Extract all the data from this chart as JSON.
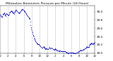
{
  "title": "Milwaukee Barometric Pressure per Minute (24 Hours)",
  "dot_color": "#0000cc",
  "bg_color": "#ffffff",
  "grid_color": "#aaaaaa",
  "ylim": [
    29.0,
    30.15
  ],
  "xlim": [
    0,
    1440
  ],
  "ytick_vals": [
    29.0,
    29.2,
    29.4,
    29.6,
    29.8,
    30.0
  ],
  "ytick_labels": [
    "29.0",
    "29.2",
    "29.4",
    "29.6",
    "29.8",
    "30.0"
  ],
  "xtick_positions": [
    0,
    120,
    240,
    360,
    480,
    600,
    720,
    840,
    960,
    1080,
    1200,
    1320,
    1440
  ],
  "xtick_labels": [
    "12",
    "2",
    "4",
    "6",
    "8",
    "10",
    "12",
    "2",
    "4",
    "6",
    "8",
    "10",
    "12"
  ],
  "vgrid_positions": [
    120,
    240,
    360,
    480,
    600,
    720,
    840,
    960,
    1080,
    1200,
    1320
  ],
  "pressure_data": [
    [
      0,
      29.92
    ],
    [
      5,
      29.93
    ],
    [
      10,
      29.91
    ],
    [
      15,
      29.9
    ],
    [
      20,
      29.88
    ],
    [
      25,
      29.87
    ],
    [
      30,
      29.88
    ],
    [
      35,
      29.9
    ],
    [
      40,
      29.92
    ],
    [
      45,
      29.94
    ],
    [
      50,
      29.95
    ],
    [
      55,
      29.96
    ],
    [
      60,
      29.97
    ],
    [
      65,
      29.96
    ],
    [
      70,
      29.95
    ],
    [
      75,
      29.93
    ],
    [
      80,
      29.91
    ],
    [
      85,
      29.9
    ],
    [
      90,
      29.92
    ],
    [
      95,
      29.94
    ],
    [
      100,
      29.96
    ],
    [
      105,
      29.95
    ],
    [
      110,
      29.94
    ],
    [
      115,
      29.93
    ],
    [
      120,
      29.92
    ],
    [
      125,
      29.91
    ],
    [
      130,
      29.93
    ],
    [
      135,
      29.95
    ],
    [
      140,
      29.97
    ],
    [
      145,
      29.98
    ],
    [
      150,
      29.99
    ],
    [
      155,
      30.0
    ],
    [
      160,
      30.01
    ],
    [
      165,
      30.02
    ],
    [
      170,
      30.03
    ],
    [
      175,
      30.02
    ],
    [
      180,
      30.01
    ],
    [
      185,
      30.0
    ],
    [
      190,
      29.99
    ],
    [
      195,
      29.98
    ],
    [
      200,
      29.97
    ],
    [
      205,
      29.96
    ],
    [
      210,
      29.95
    ],
    [
      215,
      29.97
    ],
    [
      220,
      29.99
    ],
    [
      225,
      30.01
    ],
    [
      230,
      30.03
    ],
    [
      235,
      30.04
    ],
    [
      240,
      30.05
    ],
    [
      245,
      30.04
    ],
    [
      250,
      30.03
    ],
    [
      255,
      30.02
    ],
    [
      260,
      30.01
    ],
    [
      265,
      30.0
    ],
    [
      270,
      29.99
    ],
    [
      275,
      29.98
    ],
    [
      280,
      29.97
    ],
    [
      285,
      29.96
    ],
    [
      290,
      29.97
    ],
    [
      295,
      29.98
    ],
    [
      300,
      29.99
    ],
    [
      305,
      30.0
    ],
    [
      310,
      30.01
    ],
    [
      315,
      30.02
    ],
    [
      320,
      30.03
    ],
    [
      325,
      30.04
    ],
    [
      330,
      30.05
    ],
    [
      335,
      30.06
    ],
    [
      340,
      30.07
    ],
    [
      345,
      30.06
    ],
    [
      350,
      30.05
    ],
    [
      355,
      30.04
    ],
    [
      360,
      30.03
    ],
    [
      365,
      30.02
    ],
    [
      370,
      30.01
    ],
    [
      375,
      30.0
    ],
    [
      380,
      29.99
    ],
    [
      385,
      29.98
    ],
    [
      390,
      29.97
    ],
    [
      395,
      29.96
    ],
    [
      400,
      29.95
    ],
    [
      405,
      29.93
    ],
    [
      410,
      29.91
    ],
    [
      415,
      29.9
    ],
    [
      420,
      29.89
    ],
    [
      425,
      29.88
    ],
    [
      430,
      29.87
    ],
    [
      435,
      29.86
    ],
    [
      440,
      29.85
    ],
    [
      445,
      29.84
    ],
    [
      450,
      29.83
    ],
    [
      455,
      29.82
    ],
    [
      460,
      29.75
    ],
    [
      465,
      29.68
    ],
    [
      470,
      29.62
    ],
    [
      475,
      29.58
    ],
    [
      480,
      29.55
    ],
    [
      485,
      29.52
    ],
    [
      490,
      29.5
    ],
    [
      495,
      29.47
    ],
    [
      500,
      29.44
    ],
    [
      505,
      29.42
    ],
    [
      510,
      29.4
    ],
    [
      515,
      29.37
    ],
    [
      520,
      29.35
    ],
    [
      525,
      29.33
    ],
    [
      530,
      29.31
    ],
    [
      535,
      29.3
    ],
    [
      540,
      29.28
    ],
    [
      545,
      29.27
    ],
    [
      550,
      29.26
    ],
    [
      555,
      29.25
    ],
    [
      560,
      29.24
    ],
    [
      565,
      29.23
    ],
    [
      570,
      29.22
    ],
    [
      575,
      29.22
    ],
    [
      580,
      29.22
    ],
    [
      585,
      29.22
    ],
    [
      590,
      29.21
    ],
    [
      595,
      29.2
    ],
    [
      600,
      29.19
    ],
    [
      605,
      29.18
    ],
    [
      610,
      29.17
    ],
    [
      615,
      29.16
    ],
    [
      620,
      29.15
    ],
    [
      625,
      29.14
    ],
    [
      630,
      29.13
    ],
    [
      635,
      29.13
    ],
    [
      640,
      29.13
    ],
    [
      645,
      29.13
    ],
    [
      650,
      29.14
    ],
    [
      655,
      29.15
    ],
    [
      660,
      29.16
    ],
    [
      665,
      29.15
    ],
    [
      670,
      29.14
    ],
    [
      675,
      29.13
    ],
    [
      680,
      29.12
    ],
    [
      685,
      29.11
    ],
    [
      690,
      29.1
    ],
    [
      695,
      29.1
    ],
    [
      700,
      29.11
    ],
    [
      705,
      29.12
    ],
    [
      710,
      29.11
    ],
    [
      715,
      29.1
    ],
    [
      720,
      29.09
    ],
    [
      725,
      29.09
    ],
    [
      730,
      29.1
    ],
    [
      735,
      29.11
    ],
    [
      740,
      29.12
    ],
    [
      745,
      29.13
    ],
    [
      750,
      29.14
    ],
    [
      755,
      29.13
    ],
    [
      760,
      29.12
    ],
    [
      765,
      29.11
    ],
    [
      770,
      29.11
    ],
    [
      775,
      29.12
    ],
    [
      780,
      29.13
    ],
    [
      785,
      29.13
    ],
    [
      790,
      29.12
    ],
    [
      795,
      29.11
    ],
    [
      800,
      29.1
    ],
    [
      805,
      29.09
    ],
    [
      810,
      29.08
    ],
    [
      815,
      29.08
    ],
    [
      820,
      29.08
    ],
    [
      825,
      29.09
    ],
    [
      830,
      29.1
    ],
    [
      835,
      29.11
    ],
    [
      840,
      29.1
    ],
    [
      845,
      29.09
    ],
    [
      850,
      29.08
    ],
    [
      855,
      29.07
    ],
    [
      860,
      29.07
    ],
    [
      865,
      29.07
    ],
    [
      870,
      29.07
    ],
    [
      875,
      29.06
    ],
    [
      880,
      29.06
    ],
    [
      885,
      29.05
    ],
    [
      890,
      29.05
    ],
    [
      895,
      29.05
    ],
    [
      900,
      29.06
    ],
    [
      905,
      29.07
    ],
    [
      910,
      29.07
    ],
    [
      915,
      29.06
    ],
    [
      920,
      29.05
    ],
    [
      925,
      29.05
    ],
    [
      930,
      29.05
    ],
    [
      935,
      29.05
    ],
    [
      940,
      29.05
    ],
    [
      945,
      29.05
    ],
    [
      950,
      29.05
    ],
    [
      955,
      29.05
    ],
    [
      960,
      29.04
    ],
    [
      965,
      29.04
    ],
    [
      970,
      29.04
    ],
    [
      975,
      29.05
    ],
    [
      980,
      29.05
    ],
    [
      985,
      29.04
    ],
    [
      990,
      29.04
    ],
    [
      995,
      29.03
    ],
    [
      1000,
      29.03
    ],
    [
      1005,
      29.03
    ],
    [
      1010,
      29.02
    ],
    [
      1015,
      29.02
    ],
    [
      1020,
      29.01
    ],
    [
      1025,
      29.01
    ],
    [
      1030,
      29.0
    ],
    [
      1035,
      29.0
    ],
    [
      1040,
      29.0
    ],
    [
      1045,
      29.01
    ],
    [
      1050,
      29.01
    ],
    [
      1055,
      29.01
    ],
    [
      1060,
      29.01
    ],
    [
      1065,
      29.01
    ],
    [
      1070,
      29.01
    ],
    [
      1075,
      29.01
    ],
    [
      1080,
      29.01
    ],
    [
      1085,
      29.01
    ],
    [
      1090,
      29.01
    ],
    [
      1095,
      29.01
    ],
    [
      1100,
      29.01
    ],
    [
      1105,
      29.01
    ],
    [
      1110,
      29.01
    ],
    [
      1115,
      29.0
    ],
    [
      1120,
      29.0
    ],
    [
      1125,
      29.0
    ],
    [
      1130,
      29.0
    ],
    [
      1135,
      29.0
    ],
    [
      1140,
      29.0
    ],
    [
      1145,
      29.0
    ],
    [
      1150,
      29.0
    ],
    [
      1155,
      29.01
    ],
    [
      1160,
      29.01
    ],
    [
      1165,
      29.01
    ],
    [
      1170,
      29.01
    ],
    [
      1175,
      29.02
    ],
    [
      1180,
      29.02
    ],
    [
      1185,
      29.03
    ],
    [
      1190,
      29.04
    ],
    [
      1195,
      29.04
    ],
    [
      1200,
      29.05
    ],
    [
      1205,
      29.05
    ],
    [
      1210,
      29.06
    ],
    [
      1215,
      29.06
    ],
    [
      1220,
      29.07
    ],
    [
      1225,
      29.08
    ],
    [
      1230,
      29.07
    ],
    [
      1235,
      29.07
    ],
    [
      1240,
      29.07
    ],
    [
      1245,
      29.07
    ],
    [
      1250,
      29.08
    ],
    [
      1255,
      29.08
    ],
    [
      1260,
      29.08
    ],
    [
      1265,
      29.09
    ],
    [
      1270,
      29.09
    ],
    [
      1275,
      29.1
    ],
    [
      1280,
      29.1
    ],
    [
      1285,
      29.11
    ],
    [
      1290,
      29.11
    ],
    [
      1295,
      29.12
    ],
    [
      1300,
      29.12
    ],
    [
      1305,
      29.13
    ],
    [
      1310,
      29.14
    ],
    [
      1315,
      29.15
    ],
    [
      1320,
      29.16
    ],
    [
      1325,
      29.15
    ],
    [
      1330,
      29.14
    ],
    [
      1335,
      29.15
    ],
    [
      1340,
      29.15
    ],
    [
      1345,
      29.15
    ],
    [
      1350,
      29.17
    ],
    [
      1355,
      29.19
    ],
    [
      1360,
      29.2
    ],
    [
      1365,
      29.21
    ],
    [
      1370,
      29.22
    ],
    [
      1375,
      29.24
    ],
    [
      1380,
      29.25
    ],
    [
      1385,
      29.23
    ],
    [
      1390,
      29.23
    ],
    [
      1395,
      29.22
    ],
    [
      1400,
      29.23
    ],
    [
      1405,
      29.24
    ],
    [
      1410,
      29.23
    ],
    [
      1415,
      29.22
    ],
    [
      1420,
      29.23
    ],
    [
      1425,
      29.24
    ],
    [
      1430,
      29.25
    ],
    [
      1435,
      29.26
    ],
    [
      1440,
      29.27
    ]
  ]
}
